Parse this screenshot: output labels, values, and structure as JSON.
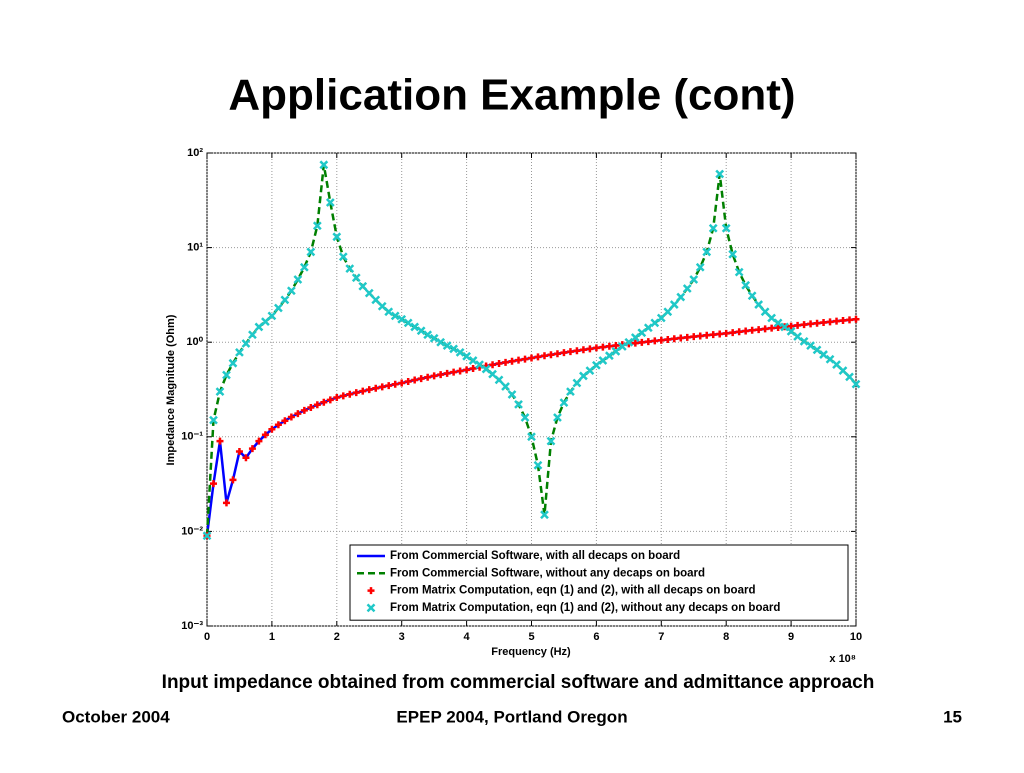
{
  "slide": {
    "title": "Application Example (cont)",
    "caption": "Input impedance obtained from commercial software and admittance approach",
    "footer_left": "October 2004",
    "footer_center": "EPEP 2004, Portland Oregon",
    "footer_right": "15"
  },
  "chart_data": {
    "type": "line",
    "xlabel": "Frequency (Hz)",
    "ylabel": "Impedance Magnitude (Ohm)",
    "x_multiplier": "x 10⁸",
    "xlim": [
      0,
      10
    ],
    "xticks": [
      0,
      1,
      2,
      3,
      4,
      5,
      6,
      7,
      8,
      9,
      10
    ],
    "ylim": [
      0.001,
      100
    ],
    "yscale": "log",
    "yticks": [
      {
        "value": 0.001,
        "label": "10⁻³"
      },
      {
        "value": 0.01,
        "label": "10⁻²"
      },
      {
        "value": 0.1,
        "label": "10⁻¹"
      },
      {
        "value": 1,
        "label": "10⁰"
      },
      {
        "value": 10,
        "label": "10¹"
      },
      {
        "value": 100,
        "label": "10²"
      }
    ],
    "grid": true,
    "legend": "lower right",
    "x": [
      0,
      0.1,
      0.2,
      0.3,
      0.4,
      0.5,
      0.6,
      0.7,
      0.8,
      0.9,
      1,
      1.1,
      1.2,
      1.3,
      1.4,
      1.5,
      1.6,
      1.7,
      1.8,
      1.9,
      2,
      2.1,
      2.2,
      2.3,
      2.4,
      2.5,
      2.6,
      2.7,
      2.8,
      2.9,
      3,
      3.1,
      3.2,
      3.3,
      3.4,
      3.5,
      3.6,
      3.7,
      3.8,
      3.9,
      4,
      4.1,
      4.2,
      4.3,
      4.4,
      4.5,
      4.6,
      4.7,
      4.8,
      4.9,
      5,
      5.1,
      5.2,
      5.3,
      5.4,
      5.5,
      5.6,
      5.7,
      5.8,
      5.9,
      6,
      6.1,
      6.2,
      6.3,
      6.4,
      6.5,
      6.6,
      6.7,
      6.8,
      6.9,
      7,
      7.1,
      7.2,
      7.3,
      7.4,
      7.5,
      7.6,
      7.7,
      7.8,
      7.9,
      8,
      8.1,
      8.2,
      8.3,
      8.4,
      8.5,
      8.6,
      8.7,
      8.8,
      8.9,
      9,
      9.1,
      9.2,
      9.3,
      9.4,
      9.5,
      9.6,
      9.7,
      9.8,
      9.9,
      10
    ],
    "series": [
      {
        "name": "From Commercial Software, with all decaps on board",
        "color": "#0000ff",
        "style": "solid",
        "values": [
          0.009,
          0.032,
          0.09,
          0.02,
          0.035,
          0.07,
          0.06,
          0.075,
          0.09,
          0.105,
          0.12,
          0.134,
          0.148,
          0.162,
          0.176,
          0.19,
          0.204,
          0.218,
          0.232,
          0.246,
          0.26,
          0.271,
          0.282,
          0.293,
          0.304,
          0.315,
          0.326,
          0.337,
          0.348,
          0.359,
          0.37,
          0.384,
          0.398,
          0.412,
          0.426,
          0.44,
          0.454,
          0.468,
          0.482,
          0.496,
          0.51,
          0.527,
          0.544,
          0.561,
          0.578,
          0.595,
          0.612,
          0.629,
          0.646,
          0.663,
          0.68,
          0.699,
          0.718,
          0.737,
          0.756,
          0.775,
          0.794,
          0.813,
          0.832,
          0.851,
          0.87,
          0.888,
          0.906,
          0.924,
          0.942,
          0.96,
          0.978,
          0.996,
          1.014,
          1.032,
          1.05,
          1.069,
          1.088,
          1.107,
          1.126,
          1.145,
          1.164,
          1.183,
          1.202,
          1.221,
          1.24,
          1.264,
          1.288,
          1.312,
          1.336,
          1.36,
          1.384,
          1.408,
          1.432,
          1.456,
          1.48,
          1.507,
          1.534,
          1.561,
          1.588,
          1.615,
          1.642,
          1.669,
          1.696,
          1.723,
          1.75
        ]
      },
      {
        "name": "From Commercial Software, without any decaps on board",
        "color": "#008000",
        "style": "dashed",
        "values": [
          0.009,
          0.15,
          0.3,
          0.45,
          0.6,
          0.78,
          0.97,
          1.2,
          1.45,
          1.65,
          1.9,
          2.3,
          2.8,
          3.5,
          4.6,
          6.2,
          9,
          17,
          75,
          30,
          13,
          8,
          6,
          4.8,
          3.9,
          3.3,
          2.8,
          2.4,
          2.1,
          1.9,
          1.75,
          1.6,
          1.45,
          1.32,
          1.2,
          1.1,
          1.0,
          0.92,
          0.85,
          0.78,
          0.71,
          0.64,
          0.58,
          0.52,
          0.46,
          0.4,
          0.34,
          0.28,
          0.22,
          0.16,
          0.1,
          0.05,
          0.015,
          0.09,
          0.16,
          0.23,
          0.3,
          0.37,
          0.44,
          0.5,
          0.57,
          0.64,
          0.72,
          0.8,
          0.9,
          1.0,
          1.12,
          1.26,
          1.42,
          1.6,
          1.8,
          2.1,
          2.5,
          3.0,
          3.7,
          4.6,
          6.2,
          9,
          16,
          60,
          16,
          8.5,
          5.5,
          4.0,
          3.1,
          2.5,
          2.1,
          1.8,
          1.6,
          1.45,
          1.3,
          1.15,
          1.02,
          0.92,
          0.83,
          0.74,
          0.66,
          0.58,
          0.5,
          0.43,
          0.36
        ]
      },
      {
        "name": "From Matrix Computation, eqn (1) and (2), with all decaps on board",
        "color": "#ff0000",
        "style": "plus",
        "values": [
          0.009,
          0.032,
          0.09,
          0.02,
          0.035,
          0.07,
          0.06,
          0.075,
          0.09,
          0.105,
          0.12,
          0.134,
          0.148,
          0.162,
          0.176,
          0.19,
          0.204,
          0.218,
          0.232,
          0.246,
          0.26,
          0.271,
          0.282,
          0.293,
          0.304,
          0.315,
          0.326,
          0.337,
          0.348,
          0.359,
          0.37,
          0.384,
          0.398,
          0.412,
          0.426,
          0.44,
          0.454,
          0.468,
          0.482,
          0.496,
          0.51,
          0.527,
          0.544,
          0.561,
          0.578,
          0.595,
          0.612,
          0.629,
          0.646,
          0.663,
          0.68,
          0.699,
          0.718,
          0.737,
          0.756,
          0.775,
          0.794,
          0.813,
          0.832,
          0.851,
          0.87,
          0.888,
          0.906,
          0.924,
          0.942,
          0.96,
          0.978,
          0.996,
          1.014,
          1.032,
          1.05,
          1.069,
          1.088,
          1.107,
          1.126,
          1.145,
          1.164,
          1.183,
          1.202,
          1.221,
          1.24,
          1.264,
          1.288,
          1.312,
          1.336,
          1.36,
          1.384,
          1.408,
          1.432,
          1.456,
          1.48,
          1.507,
          1.534,
          1.561,
          1.588,
          1.615,
          1.642,
          1.669,
          1.696,
          1.723,
          1.75
        ]
      },
      {
        "name": "From Matrix Computation, eqn (1) and (2), without any decaps on board",
        "color": "#20c8c8",
        "style": "cross",
        "values": [
          0.009,
          0.15,
          0.3,
          0.45,
          0.6,
          0.78,
          0.97,
          1.2,
          1.45,
          1.65,
          1.9,
          2.3,
          2.8,
          3.5,
          4.6,
          6.2,
          9,
          17,
          75,
          30,
          13,
          8,
          6,
          4.8,
          3.9,
          3.3,
          2.8,
          2.4,
          2.1,
          1.9,
          1.75,
          1.6,
          1.45,
          1.32,
          1.2,
          1.1,
          1.0,
          0.92,
          0.85,
          0.78,
          0.71,
          0.64,
          0.58,
          0.52,
          0.46,
          0.4,
          0.34,
          0.28,
          0.22,
          0.16,
          0.1,
          0.05,
          0.015,
          0.09,
          0.16,
          0.23,
          0.3,
          0.37,
          0.44,
          0.5,
          0.57,
          0.64,
          0.72,
          0.8,
          0.9,
          1.0,
          1.12,
          1.26,
          1.42,
          1.6,
          1.8,
          2.1,
          2.5,
          3.0,
          3.7,
          4.6,
          6.2,
          9,
          16,
          60,
          16,
          8.5,
          5.5,
          4.0,
          3.1,
          2.5,
          2.1,
          1.8,
          1.6,
          1.45,
          1.3,
          1.15,
          1.02,
          0.92,
          0.83,
          0.74,
          0.66,
          0.58,
          0.5,
          0.43,
          0.36
        ]
      }
    ]
  }
}
